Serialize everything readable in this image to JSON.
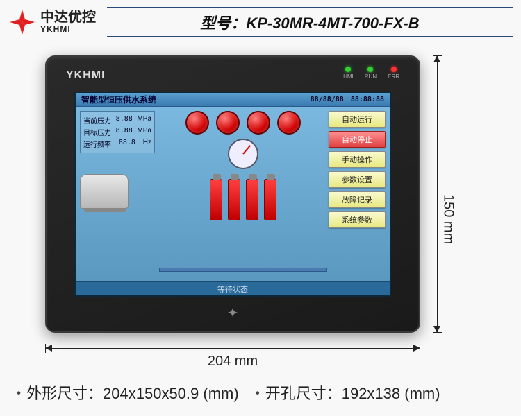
{
  "logo": {
    "company": "中达优控",
    "brand": "YKHMI",
    "mark_color": "#e02020"
  },
  "model_bar": {
    "label": "型号：",
    "value": "KP-30MR-4MT-700-FX-B"
  },
  "device": {
    "brand": "YKHMI",
    "leds": [
      {
        "label": "HMI",
        "color": "#30d030"
      },
      {
        "label": "RUN",
        "color": "#30d030"
      },
      {
        "label": "ERR",
        "color": "#ff3030"
      }
    ]
  },
  "screen": {
    "title": "智能型恒压供水系统",
    "date": "88/88/88",
    "time": "88:88:88",
    "readouts": [
      {
        "label": "当前压力",
        "value": "8.88",
        "unit": "MPa"
      },
      {
        "label": "目标压力",
        "value": "8.88",
        "unit": "MPa"
      },
      {
        "label": "运行频率",
        "value": "88.8",
        "unit": "Hz"
      }
    ],
    "lamp_count": 4,
    "pump_count": 4,
    "buttons": [
      {
        "label": "自动运行",
        "active": false
      },
      {
        "label": "自动停止",
        "active": true
      },
      {
        "label": "手动操作",
        "active": false
      },
      {
        "label": "参数设置",
        "active": false
      },
      {
        "label": "故障记录",
        "active": false
      },
      {
        "label": "系统参数",
        "active": false
      }
    ],
    "footer": "等待状态"
  },
  "dimensions": {
    "width_label": "204 mm",
    "height_label": "150 mm"
  },
  "specs": {
    "outline_key": "外形尺寸：",
    "outline_val": "204x150x50.9 (mm)",
    "cutout_key": "开孔尺寸：",
    "cutout_val": "192x138 (mm)"
  },
  "colors": {
    "model_border": "#2b4a7a",
    "device_body": "#2a2a2a",
    "screen_bg": "#1a5a8a"
  }
}
